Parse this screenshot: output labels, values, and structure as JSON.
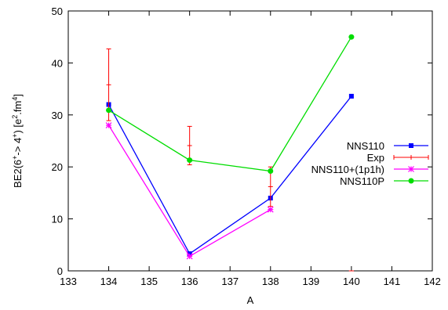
{
  "chart_data": {
    "type": "line",
    "title": "",
    "xlabel": "A",
    "ylabel": "BE2(6+-> 4+) [e2.fm4]",
    "ylabel_parts": {
      "base": "BE2(6",
      "sup1": "+",
      "mid": "-> 4",
      "sup2": "+",
      "unit_open": ") [e",
      "sup3": "2",
      "unit_mid": ".fm",
      "sup4": "4",
      "unit_close": "]"
    },
    "xlim": [
      133,
      142
    ],
    "ylim": [
      0,
      50
    ],
    "x_ticks": [
      "133",
      "134",
      "135",
      "136",
      "137",
      "138",
      "139",
      "140",
      "141",
      "142"
    ],
    "y_ticks": [
      "0",
      "10",
      "20",
      "30",
      "40",
      "50"
    ],
    "grid": false,
    "legend_position": "right",
    "series": [
      {
        "name": "NNS110",
        "color": "#0000ff",
        "marker": "square",
        "line": true,
        "points": [
          [
            134,
            32.0
          ],
          [
            136,
            3.3
          ],
          [
            138,
            14.0
          ],
          [
            140,
            33.6
          ]
        ]
      },
      {
        "name": "Exp",
        "color": "#ff0000",
        "marker": "errorbar",
        "line": false,
        "points": [
          [
            134,
            35.8
          ],
          [
            136,
            24.1
          ],
          [
            138,
            16.2
          ],
          [
            140,
            0
          ]
        ],
        "errors": [
          [
            134,
            28.9,
            42.7
          ],
          [
            136,
            20.4,
            27.8
          ],
          [
            138,
            12.4,
            20.0
          ],
          [
            140,
            0,
            0
          ]
        ]
      },
      {
        "name": "NNS110+(1p1h)",
        "color": "#ff00ff",
        "marker": "star",
        "line": true,
        "points": [
          [
            134,
            28.0
          ],
          [
            136,
            2.8
          ],
          [
            138,
            11.8
          ]
        ]
      },
      {
        "name": "NNS110P",
        "color": "#00dd00",
        "marker": "circle",
        "line": true,
        "points": [
          [
            134,
            30.9
          ],
          [
            136,
            21.3
          ],
          [
            138,
            19.2
          ],
          [
            140,
            45.0
          ]
        ]
      }
    ]
  }
}
